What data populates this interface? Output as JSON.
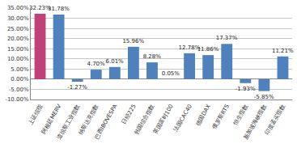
{
  "chart_data": {
    "type": "bar",
    "categories": [
      "上证综指",
      "阿根廷MERV",
      "道琼斯工业指数",
      "纳斯达克指数",
      "巴西IBOVESPA",
      "日经225",
      "韩国综合指数",
      "英国富时100",
      "法国CAC40",
      "德国DAX",
      "俄罗斯RTS",
      "恒生指数",
      "新加坡海峡指数",
      "印度孟买指数"
    ],
    "values": [
      32.23,
      31.78,
      -1.27,
      4.7,
      6.01,
      15.96,
      8.28,
      0.05,
      12.78,
      11.86,
      17.37,
      -1.93,
      -5.85,
      11.21
    ],
    "value_labels": [
      "32.23%",
      "31.78%",
      "-1.27%",
      "4.70%",
      "6.01%",
      "15.96%",
      "8.28%",
      "0.05%",
      "12.78%",
      "11.86%",
      "17.37%",
      "-1.93%",
      "-5.85%",
      "11.21%"
    ],
    "colors": [
      "#c0407a",
      "#4f81bd",
      "#4f81bd",
      "#4f81bd",
      "#4f81bd",
      "#4f81bd",
      "#4f81bd",
      "#4f81bd",
      "#4f81bd",
      "#4f81bd",
      "#4f81bd",
      "#4f81bd",
      "#4f81bd",
      "#4f81bd"
    ],
    "ylim": [
      -10,
      35
    ],
    "yticks": [
      {
        "value": -10,
        "label": "-10.00%"
      },
      {
        "value": -5,
        "label": "-5.00%"
      },
      {
        "value": 0,
        "label": "0.00%"
      },
      {
        "value": 5,
        "label": "5.00%"
      },
      {
        "value": 10,
        "label": "10.00%"
      },
      {
        "value": 15,
        "label": "15.00%"
      },
      {
        "value": 20,
        "label": "20.00%"
      },
      {
        "value": 25,
        "label": "25.00%"
      },
      {
        "value": 30,
        "label": "30.00%"
      },
      {
        "value": 35,
        "label": "35.00%"
      }
    ],
    "grid": true,
    "data_labels": true
  }
}
